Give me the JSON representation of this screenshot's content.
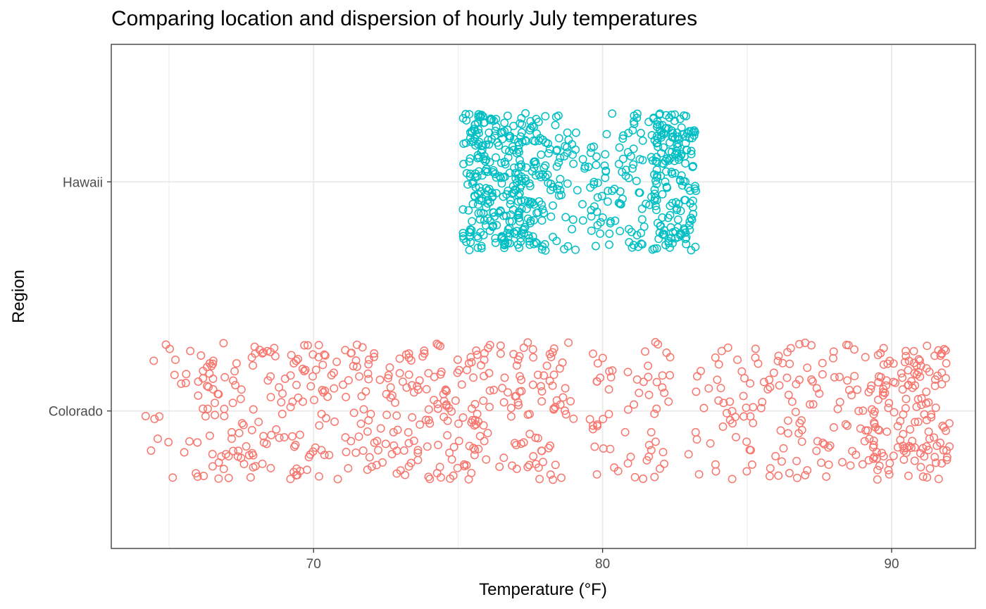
{
  "chart_data": {
    "type": "scatter",
    "title": "Comparing location and dispersion of hourly July temperatures",
    "xlabel": "Temperature (°F)",
    "ylabel": "Region",
    "xlim": [
      63.0,
      92.9
    ],
    "x_ticks": [
      70,
      80,
      90
    ],
    "x_minor_ticks": [
      65,
      75,
      85
    ],
    "categories": [
      "Colorado",
      "Hawaii"
    ],
    "grid": true,
    "legend": "none",
    "marker": "open-circle",
    "jitter_height": 0.3,
    "series": [
      {
        "category": "Hawaii",
        "color": "#00BFC4",
        "x_range": [
          75.2,
          83.2
        ],
        "clusters": [
          {
            "from": 75.2,
            "to": 78.0,
            "count": 320
          },
          {
            "from": 78.0,
            "to": 80.5,
            "count": 90
          },
          {
            "from": 80.5,
            "to": 81.8,
            "count": 60
          },
          {
            "from": 81.8,
            "to": 83.2,
            "count": 170
          }
        ]
      },
      {
        "category": "Colorado",
        "color": "#F8766D",
        "x_range": [
          64.1,
          92.0
        ],
        "clusters": [
          {
            "from": 64.1,
            "to": 66.0,
            "count": 20
          },
          {
            "from": 66.0,
            "to": 71.0,
            "count": 150
          },
          {
            "from": 71.0,
            "to": 75.5,
            "count": 150
          },
          {
            "from": 75.5,
            "to": 79.0,
            "count": 110
          },
          {
            "from": 79.5,
            "to": 82.3,
            "count": 60
          },
          {
            "from": 83.0,
            "to": 86.5,
            "count": 70
          },
          {
            "from": 86.5,
            "to": 89.0,
            "count": 60
          },
          {
            "from": 89.0,
            "to": 92.0,
            "count": 160
          }
        ]
      }
    ]
  }
}
